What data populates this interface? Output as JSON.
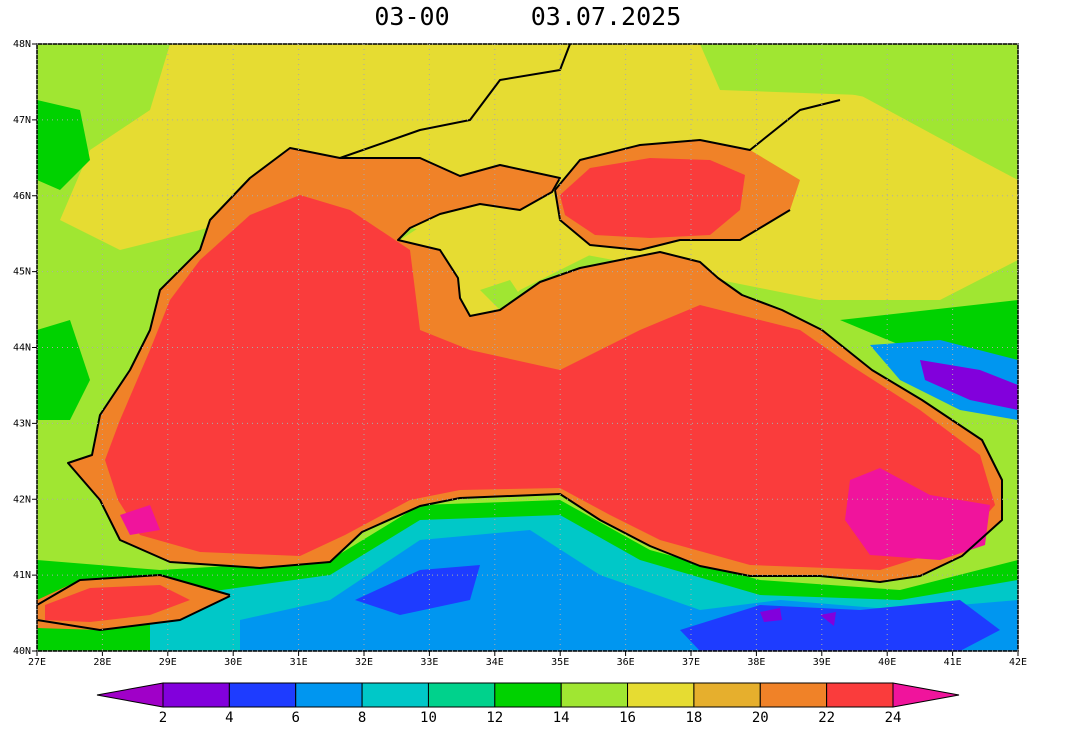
{
  "header": {
    "time": "03-00",
    "date": "03.07.2025"
  },
  "map": {
    "lon_ticks": [
      {
        "value": 27,
        "label": "27E"
      },
      {
        "value": 28,
        "label": "28E"
      },
      {
        "value": 29,
        "label": "29E"
      },
      {
        "value": 30,
        "label": "30E"
      },
      {
        "value": 31,
        "label": "31E"
      },
      {
        "value": 32,
        "label": "32E"
      },
      {
        "value": 33,
        "label": "33E"
      },
      {
        "value": 34,
        "label": "34E"
      },
      {
        "value": 35,
        "label": "35E"
      },
      {
        "value": 36,
        "label": "36E"
      },
      {
        "value": 37,
        "label": "37E"
      },
      {
        "value": 38,
        "label": "38E"
      },
      {
        "value": 39,
        "label": "39E"
      },
      {
        "value": 40,
        "label": "40E"
      },
      {
        "value": 41,
        "label": "41E"
      },
      {
        "value": 42,
        "label": "42E"
      }
    ],
    "lat_ticks": [
      {
        "value": 40,
        "label": "40N"
      },
      {
        "value": 41,
        "label": "41N"
      },
      {
        "value": 42,
        "label": "42N"
      },
      {
        "value": 43,
        "label": "43N"
      },
      {
        "value": 44,
        "label": "44N"
      },
      {
        "value": 45,
        "label": "45N"
      },
      {
        "value": 46,
        "label": "46N"
      },
      {
        "value": 47,
        "label": "47N"
      },
      {
        "value": 48,
        "label": "48N"
      }
    ],
    "xlim": [
      27,
      42
    ],
    "ylim": [
      40,
      48
    ],
    "grid": true
  },
  "colorbar": {
    "levels": [
      2,
      4,
      6,
      8,
      10,
      12,
      14,
      16,
      18,
      20,
      22,
      24
    ],
    "colors": [
      "#a000c8",
      "#8200dc",
      "#1e3cff",
      "#0096f0",
      "#00c8c8",
      "#00d28c",
      "#00d200",
      "#a0e632",
      "#e6dc32",
      "#e6af2d",
      "#f08228",
      "#fa3c3c",
      "#f0149c"
    ]
  }
}
